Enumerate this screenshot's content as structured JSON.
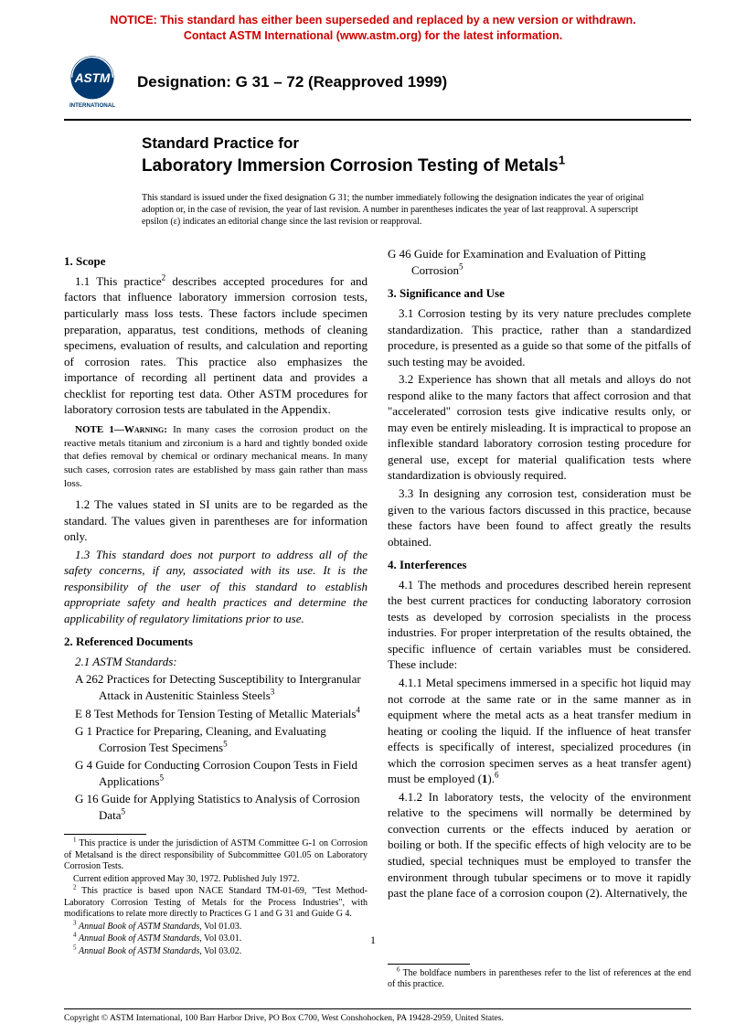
{
  "notice": {
    "line1": "NOTICE: This standard has either been superseded and replaced by a new version or withdrawn.",
    "line2": "Contact ASTM International (www.astm.org) for the latest information."
  },
  "logo": {
    "top": "ASTM",
    "bottom": "INTERNATIONAL"
  },
  "designation_label": "Designation: G 31 – 72 (Reapproved 1999)",
  "title": {
    "line1": "Standard Practice for",
    "line2": "Laboratory Immersion Corrosion Testing of Metals",
    "sup": "1"
  },
  "issue_note": "This standard is issued under the fixed designation G 31; the number immediately following the designation indicates the year of original adoption or, in the case of revision, the year of last revision. A number in parentheses indicates the year of last reapproval. A superscript epsilon (ε) indicates an editorial change since the last revision or reapproval.",
  "scope": {
    "head": "1. Scope",
    "p11a": "1.1 This practice",
    "p11sup": "2",
    "p11b": " describes accepted procedures for and factors that influence laboratory immersion corrosion tests, particularly mass loss tests. These factors include specimen preparation, apparatus, test conditions, methods of cleaning specimens, evaluation of results, and calculation and reporting of corrosion rates. This practice also emphasizes the importance of recording all pertinent data and provides a checklist for reporting test data. Other ASTM procedures for laboratory corrosion tests are tabulated in the Appendix.",
    "note_label": "Note 1—Warning:",
    "note_body": " In many cases the corrosion product on the reactive metals titanium and zirconium is a hard and tightly bonded oxide that defies removal by chemical or ordinary mechanical means. In many such cases, corrosion rates are established by mass gain rather than mass loss.",
    "p12": "1.2 The values stated in SI units are to be regarded as the standard. The values given in parentheses are for information only.",
    "p13": "1.3 This standard does not purport to address all of the safety concerns, if any, associated with its use. It is the responsibility of the user of this standard to establish appropriate safety and health practices and determine the applicability of regulatory limitations prior to use."
  },
  "refdocs": {
    "head": "2. Referenced Documents",
    "sub": "2.1 ASTM Standards:",
    "items": [
      {
        "txt": "A 262  Practices for Detecting Susceptibility to Intergranular Attack in Austenitic Stainless Steels",
        "sup": "3"
      },
      {
        "txt": "E 8  Test Methods for Tension Testing of Metallic Materials",
        "sup": "4"
      },
      {
        "txt": "G 1  Practice for Preparing, Cleaning, and Evaluating Corrosion Test Specimens",
        "sup": "5"
      },
      {
        "txt": "G 4  Guide for Conducting Corrosion Coupon Tests in Field Applications",
        "sup": "5"
      },
      {
        "txt": "G 16  Guide for Applying Statistics to Analysis of Corrosion Data",
        "sup": "5"
      }
    ]
  },
  "g46": {
    "txt": "G 46  Guide for Examination and Evaluation of Pitting Corrosion",
    "sup": "5"
  },
  "sig": {
    "head": "3. Significance and Use",
    "p31": "3.1 Corrosion testing by its very nature precludes complete standardization. This practice, rather than a standardized procedure, is presented as a guide so that some of the pitfalls of such testing may be avoided.",
    "p32": "3.2 Experience has shown that all metals and alloys do not respond alike to the many factors that affect corrosion and that \"accelerated\" corrosion tests give indicative results only, or may even be entirely misleading. It is impractical to propose an inflexible standard laboratory corrosion testing procedure for general use, except for material qualification tests where standardization is obviously required.",
    "p33": "3.3 In designing any corrosion test, consideration must be given to the various factors discussed in this practice, because these factors have been found to affect greatly the results obtained."
  },
  "interf": {
    "head": "4. Interferences",
    "p41": "4.1 The methods and procedures described herein represent the best current practices for conducting laboratory corrosion tests as developed by corrosion specialists in the process industries. For proper interpretation of the results obtained, the specific influence of certain variables must be considered. These include:",
    "p411a": "4.1.1 Metal specimens immersed in a specific hot liquid may not corrode at the same rate or in the same manner as in equipment where the metal acts as a heat transfer medium in heating or cooling the liquid. If the influence of heat transfer effects is specifically of interest, specialized procedures (in which the corrosion specimen serves as a heat transfer agent) must be employed (",
    "p411bold": "1",
    "p411b": ").",
    "p411sup": "6",
    "p412": "4.1.2 In laboratory tests, the velocity of the environment relative to the specimens will normally be determined by convection currents or the effects induced by aeration or boiling or both. If the specific effects of high velocity are to be studied, special techniques must be employed to transfer the environment through tubular specimens or to move it rapidly past the plane face of a corrosion coupon (2). Alternatively, the"
  },
  "footnotes_left": [
    {
      "sup": "1",
      "txt": " This practice is under the jurisdiction of ASTM Committee G-1 on Corrosion of Metalsand is the direct responsibility of Subcommittee G01.05 on Laboratory Corrosion Tests."
    },
    {
      "sup": "",
      "txt": "Current edition approved May 30, 1972. Published July 1972."
    },
    {
      "sup": "2",
      "txt": " This practice is based upon NACE Standard TM-01-69, \"Test Method-Laboratory Corrosion Testing of Metals for the Process Industries\", with modifications to relate more directly to Practices G 1 and G 31 and Guide G 4."
    },
    {
      "sup": "3",
      "txt": " Annual Book of ASTM Standards, Vol 01.03.",
      "ital": true
    },
    {
      "sup": "4",
      "txt": " Annual Book of ASTM Standards, Vol 03.01.",
      "ital": true
    },
    {
      "sup": "5",
      "txt": " Annual Book of ASTM Standards, Vol 03.02.",
      "ital": true
    }
  ],
  "footnotes_right": [
    {
      "sup": "6",
      "txt": " The boldface numbers in parentheses refer to the list of references at the end of this practice."
    }
  ],
  "copyright": "Copyright © ASTM International, 100 Barr Harbor Drive, PO Box C700, West Conshohocken, PA 19428-2959, United States.",
  "pagenum": "1"
}
